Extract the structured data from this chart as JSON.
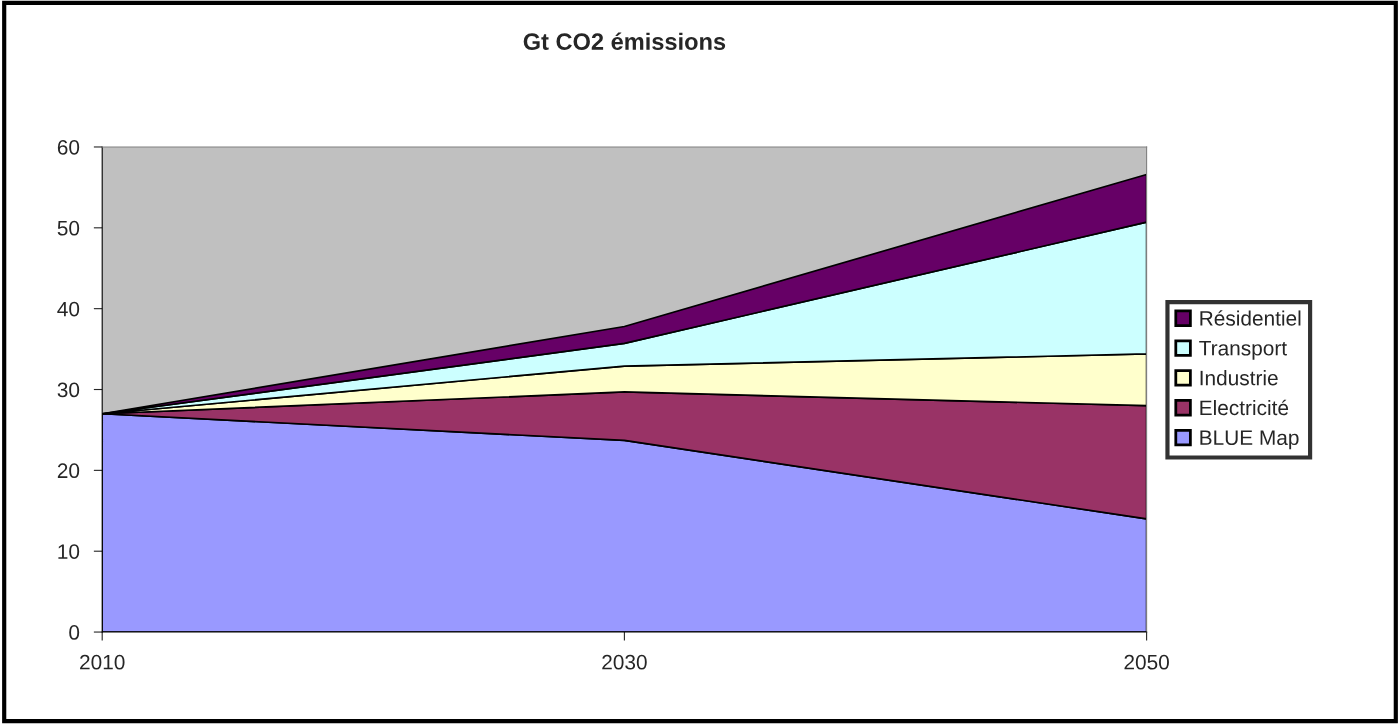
{
  "chart_data": {
    "type": "area",
    "title": "Gt CO2 émissions",
    "stacked": true,
    "categories": [
      "2010",
      "2030",
      "2050"
    ],
    "series": [
      {
        "name": "BLUE Map",
        "color": "#9999ff",
        "values": [
          27,
          23.7,
          14.0
        ]
      },
      {
        "name": "Electricité",
        "color": "#993366",
        "values": [
          0,
          6.0,
          14.0
        ]
      },
      {
        "name": "Industrie",
        "color": "#ffffcc",
        "values": [
          0,
          3.2,
          6.4
        ]
      },
      {
        "name": "Transport",
        "color": "#ccffff",
        "values": [
          0,
          2.8,
          16.3
        ]
      },
      {
        "name": "Résidentiel",
        "color": "#660066",
        "values": [
          0,
          2.1,
          5.9
        ]
      }
    ],
    "ylim": [
      0,
      60
    ],
    "yticks": [
      0,
      10,
      20,
      30,
      40,
      50,
      60
    ],
    "grid": false,
    "legend": "right"
  }
}
